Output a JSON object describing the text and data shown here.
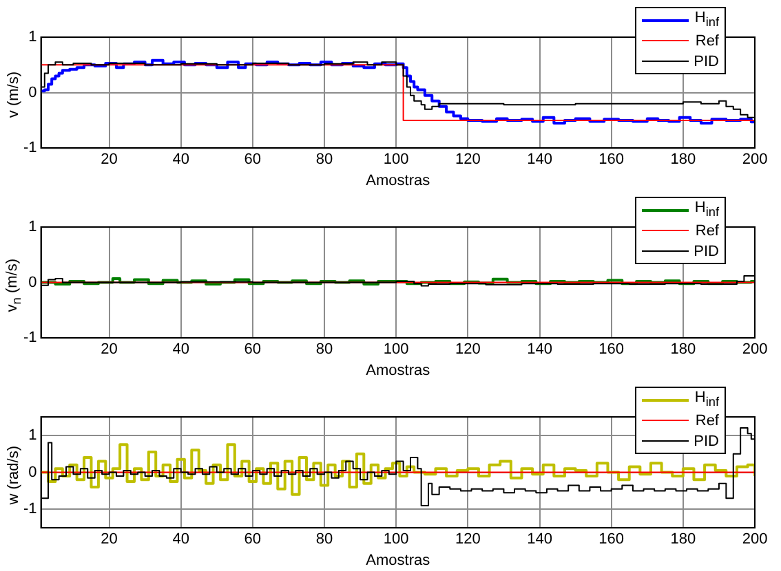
{
  "chart_data": [
    {
      "type": "step",
      "xlabel": "Amostras",
      "ylabel": "v (m/s)",
      "xlim": [
        1,
        200
      ],
      "xticks": [
        20,
        40,
        60,
        80,
        100,
        120,
        140,
        160,
        180,
        200
      ],
      "ylim": [
        -1,
        1
      ],
      "yticks": [
        -1,
        0,
        1
      ],
      "grid": true,
      "legend": "top right",
      "series": [
        {
          "name": "H$_{inf}$",
          "color": "#0000ff",
          "x": [
            1,
            2,
            3,
            4,
            5,
            6,
            7,
            9,
            11,
            13,
            16,
            19,
            22,
            24,
            27,
            30,
            32,
            35,
            38,
            41,
            44,
            47,
            50,
            53,
            56,
            58,
            61,
            64,
            67,
            70,
            73,
            76,
            79,
            82,
            85,
            88,
            91,
            94,
            97,
            100,
            102,
            103,
            104,
            105,
            106,
            108,
            110,
            112,
            114,
            116,
            118,
            120,
            124,
            128,
            131,
            135,
            138,
            141,
            144,
            147,
            150,
            154,
            158,
            162,
            166,
            170,
            173,
            176,
            179,
            182,
            185,
            188,
            192,
            196,
            199,
            200
          ],
          "values": [
            0.03,
            0.05,
            0.15,
            0.25,
            0.3,
            0.35,
            0.4,
            0.42,
            0.45,
            0.5,
            0.48,
            0.53,
            0.45,
            0.52,
            0.55,
            0.5,
            0.58,
            0.52,
            0.55,
            0.5,
            0.53,
            0.5,
            0.45,
            0.55,
            0.45,
            0.52,
            0.5,
            0.55,
            0.52,
            0.5,
            0.53,
            0.5,
            0.55,
            0.5,
            0.53,
            0.48,
            0.45,
            0.52,
            0.5,
            0.52,
            0.45,
            0.3,
            0.2,
            0.1,
            0.05,
            -0.05,
            -0.15,
            -0.25,
            -0.35,
            -0.42,
            -0.47,
            -0.5,
            -0.52,
            -0.47,
            -0.5,
            -0.48,
            -0.52,
            -0.45,
            -0.55,
            -0.5,
            -0.47,
            -0.52,
            -0.48,
            -0.5,
            -0.52,
            -0.47,
            -0.5,
            -0.52,
            -0.45,
            -0.5,
            -0.55,
            -0.48,
            -0.5,
            -0.48,
            -0.53,
            -0.53
          ]
        },
        {
          "name": "Ref",
          "color": "#ff0000",
          "x": [
            1,
            102,
            200
          ],
          "values": [
            0.5,
            -0.5,
            -0.5
          ]
        },
        {
          "name": "PID",
          "color": "#000000",
          "x": [
            1,
            2,
            3,
            5,
            7,
            10,
            15,
            20,
            30,
            40,
            50,
            60,
            70,
            80,
            88,
            92,
            96,
            100,
            102,
            103,
            104,
            105,
            107,
            108,
            110,
            112,
            130,
            150,
            170,
            180,
            185,
            190,
            192,
            194,
            196,
            198,
            200
          ],
          "values": [
            0.1,
            0.35,
            0.5,
            0.55,
            0.5,
            0.53,
            0.5,
            0.53,
            0.5,
            0.52,
            0.5,
            0.53,
            0.5,
            0.52,
            0.55,
            0.5,
            0.55,
            0.5,
            0.3,
            0.1,
            -0.05,
            -0.15,
            -0.22,
            -0.3,
            -0.25,
            -0.2,
            -0.22,
            -0.2,
            -0.2,
            -0.17,
            -0.2,
            -0.15,
            -0.25,
            -0.3,
            -0.4,
            -0.45,
            -0.45
          ]
        }
      ]
    },
    {
      "type": "step",
      "xlabel": "Amostras",
      "ylabel": "v$_{n}$ (m/s)",
      "xlim": [
        1,
        200
      ],
      "xticks": [
        20,
        40,
        60,
        80,
        100,
        120,
        140,
        160,
        180,
        200
      ],
      "ylim": [
        -1,
        1
      ],
      "yticks": [
        -1,
        0,
        1
      ],
      "grid": true,
      "legend": "top right",
      "series": [
        {
          "name": "H$_{inf}$",
          "color": "#008000",
          "x": [
            1,
            5,
            9,
            13,
            17,
            21,
            23,
            27,
            31,
            35,
            39,
            43,
            47,
            51,
            55,
            59,
            63,
            67,
            71,
            75,
            79,
            83,
            87,
            91,
            95,
            99,
            103,
            107,
            111,
            115,
            119,
            123,
            127,
            131,
            135,
            139,
            143,
            147,
            151,
            155,
            159,
            163,
            167,
            171,
            175,
            179,
            183,
            187,
            191,
            195,
            199,
            200
          ],
          "values": [
            0,
            -0.03,
            0.02,
            -0.02,
            0,
            0.07,
            0,
            0.05,
            -0.02,
            0.04,
            0,
            0.03,
            -0.03,
            0,
            0.05,
            -0.02,
            0.02,
            0,
            0.03,
            -0.02,
            0.02,
            0,
            0.03,
            -0.03,
            0.02,
            0.02,
            -0.02,
            0,
            0.02,
            -0.02,
            0.01,
            -0.01,
            0.06,
            0,
            0.02,
            -0.02,
            0.02,
            0,
            0.02,
            0,
            0.04,
            -0.02,
            0.02,
            0,
            0.03,
            -0.02,
            0.02,
            -0.02,
            0.02,
            0,
            0.02,
            0.02
          ]
        },
        {
          "name": "Ref",
          "color": "#ff0000",
          "x": [
            1,
            200
          ],
          "values": [
            0,
            0
          ]
        },
        {
          "name": "PID",
          "color": "#000000",
          "x": [
            1,
            3,
            5,
            7,
            20,
            40,
            60,
            80,
            100,
            105,
            107,
            109,
            115,
            125,
            135,
            145,
            155,
            165,
            175,
            185,
            195,
            197,
            199,
            200
          ],
          "values": [
            -0.05,
            0.05,
            0.07,
            0,
            0,
            0.01,
            0,
            0,
            0.02,
            -0.02,
            -0.06,
            -0.03,
            -0.02,
            -0.04,
            -0.02,
            -0.03,
            -0.02,
            -0.03,
            -0.02,
            -0.03,
            0.02,
            0.12,
            0.12,
            0.12
          ]
        }
      ]
    },
    {
      "type": "step",
      "xlabel": "Amostras",
      "ylabel": "w (rad/s)",
      "xlim": [
        1,
        200
      ],
      "xticks": [
        20,
        40,
        60,
        80,
        100,
        120,
        140,
        160,
        180,
        200
      ],
      "ylim": [
        -1.5,
        1.5
      ],
      "yticks": [
        -1,
        0,
        1
      ],
      "grid": true,
      "legend": "top right",
      "series": [
        {
          "name": "H$_{inf}$",
          "color": "#bfbf00",
          "x": [
            1,
            3,
            5,
            7,
            9,
            11,
            13,
            15,
            17,
            19,
            21,
            23,
            25,
            27,
            29,
            31,
            33,
            35,
            37,
            39,
            41,
            43,
            45,
            47,
            49,
            51,
            53,
            55,
            57,
            59,
            61,
            63,
            65,
            67,
            69,
            71,
            73,
            75,
            77,
            79,
            81,
            83,
            85,
            87,
            89,
            91,
            93,
            95,
            97,
            99,
            101,
            103,
            105,
            108,
            111,
            114,
            117,
            120,
            123,
            126,
            129,
            132,
            135,
            138,
            141,
            144,
            147,
            150,
            153,
            156,
            159,
            162,
            165,
            168,
            171,
            174,
            177,
            180,
            183,
            186,
            189,
            192,
            195,
            198,
            200
          ],
          "values": [
            0,
            -0.25,
            0.1,
            -0.1,
            0.2,
            -0.2,
            0.4,
            -0.4,
            0.3,
            -0.15,
            0.1,
            0.75,
            -0.25,
            0.1,
            -0.2,
            0.55,
            -0.1,
            0.2,
            -0.25,
            0.35,
            -0.15,
            0.6,
            0.05,
            -0.3,
            0.2,
            -0.2,
            0.75,
            -0.1,
            0.3,
            -0.25,
            0.1,
            -0.3,
            0.25,
            -0.45,
            0.3,
            -0.6,
            0.4,
            -0.2,
            0.25,
            -0.35,
            0.2,
            -0.1,
            0.3,
            -0.4,
            0.5,
            -0.3,
            0.2,
            -0.15,
            0.1,
            0.25,
            -0.1,
            0.15,
            0,
            -0.05,
            0.1,
            -0.1,
            0.05,
            0.1,
            -0.1,
            0.2,
            0.3,
            -0.15,
            0.1,
            -0.05,
            0.2,
            -0.1,
            0.1,
            0.05,
            -0.1,
            0.25,
            0,
            -0.2,
            0.15,
            -0.05,
            0.25,
            0,
            -0.1,
            0.1,
            -0.2,
            0.2,
            0.05,
            -0.1,
            0.15,
            0.2,
            -0.1
          ]
        },
        {
          "name": "Ref",
          "color": "#ff0000",
          "x": [
            1,
            200
          ],
          "values": [
            0,
            0
          ]
        },
        {
          "name": "PID",
          "color": "#000000",
          "x": [
            1,
            3,
            4,
            6,
            8,
            10,
            12,
            14,
            16,
            18,
            20,
            22,
            24,
            26,
            28,
            30,
            32,
            34,
            36,
            38,
            40,
            42,
            44,
            46,
            48,
            50,
            52,
            54,
            56,
            58,
            60,
            62,
            64,
            66,
            68,
            70,
            72,
            74,
            76,
            78,
            80,
            82,
            84,
            86,
            88,
            90,
            92,
            94,
            96,
            98,
            100,
            102,
            104,
            106,
            107,
            108,
            109,
            110,
            112,
            115,
            118,
            121,
            124,
            127,
            130,
            133,
            136,
            139,
            142,
            145,
            148,
            151,
            154,
            157,
            160,
            163,
            166,
            169,
            172,
            175,
            178,
            181,
            184,
            187,
            190,
            192,
            194,
            196,
            198,
            199,
            200
          ],
          "values": [
            -0.7,
            0.8,
            -0.2,
            -0.1,
            0.15,
            -0.05,
            0.1,
            -0.15,
            0.05,
            -0.05,
            0,
            -0.1,
            0.05,
            -0.05,
            0,
            -0.1,
            0.05,
            -0.1,
            -0.15,
            0.1,
            0,
            -0.05,
            0.1,
            -0.05,
            0.15,
            0,
            0.1,
            -0.05,
            0.1,
            -0.1,
            0.05,
            -0.05,
            0.1,
            -0.1,
            0.05,
            -0.05,
            0.05,
            -0.1,
            0.1,
            -0.05,
            0,
            -0.15,
            0.05,
            0.3,
            0.1,
            -0.2,
            0,
            -0.1,
            0.05,
            -0.05,
            0.3,
            0.05,
            0.4,
            0.1,
            -0.9,
            -0.9,
            -0.3,
            -0.6,
            -0.4,
            -0.45,
            -0.5,
            -0.45,
            -0.5,
            -0.45,
            -0.55,
            -0.45,
            -0.5,
            -0.55,
            -0.45,
            -0.5,
            -0.35,
            -0.5,
            -0.4,
            -0.5,
            -0.45,
            -0.35,
            -0.5,
            -0.45,
            -0.5,
            -0.45,
            -0.5,
            -0.45,
            -0.5,
            -0.45,
            -0.3,
            -0.7,
            0.5,
            1.2,
            1.05,
            0.9,
            0.9
          ]
        }
      ]
    }
  ]
}
